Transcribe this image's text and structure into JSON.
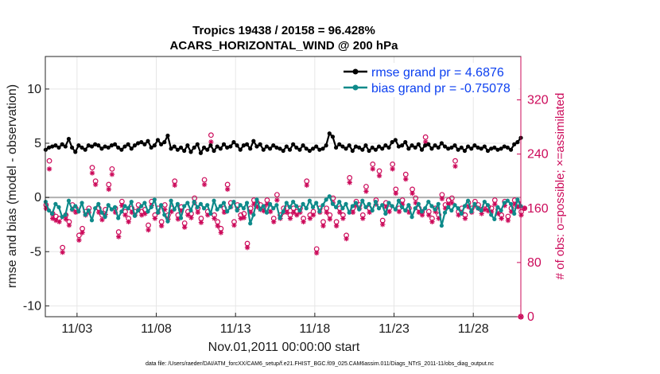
{
  "chart_data": {
    "type": "line",
    "title_line1": "Tropics 19438 / 20158 = 96.428%",
    "title_line2": "ACARS_HORIZONTAL_WIND @ 200 hPa",
    "xlabel": "Nov.01,2011 00:00:00 start",
    "ylabel_left": "rmse and bias (model - observation)",
    "ylabel_right": "# of obs: o=possible; ×=assimilated",
    "x_tick_labels": [
      "11/03",
      "11/08",
      "11/13",
      "11/18",
      "11/23",
      "11/28"
    ],
    "x_tick_days": [
      3,
      8,
      13,
      18,
      23,
      28
    ],
    "xlim_days": [
      1,
      31
    ],
    "left_ylim": [
      -11,
      13
    ],
    "left_ticks": [
      "-10",
      "-5",
      "0",
      "5",
      "10"
    ],
    "left_tick_values": [
      -10,
      -5,
      0,
      5,
      10
    ],
    "right_ylim": [
      0,
      384
    ],
    "right_ticks": [
      "0",
      "80",
      "160",
      "240",
      "320"
    ],
    "right_tick_values": [
      0,
      80,
      160,
      240,
      320
    ],
    "legend": [
      {
        "name": "rmse grand pr = 4.6876",
        "color": "#000000"
      },
      {
        "name": "bias grand pr = -0.75078",
        "color": "#0e8a8a"
      }
    ],
    "series": [
      {
        "name": "rmse",
        "color": "#000000",
        "values": [
          4.4,
          4.6,
          4.7,
          4.8,
          4.6,
          4.9,
          4.7,
          5.4,
          4.6,
          4.2,
          4.8,
          4.6,
          4.4,
          4.8,
          4.7,
          4.9,
          4.8,
          4.5,
          4.7,
          4.6,
          4.8,
          4.9,
          4.6,
          4.4,
          4.7,
          4.9,
          4.5,
          4.8,
          5.0,
          5.1,
          4.9,
          5.2,
          4.6,
          4.8,
          5.3,
          4.9,
          5.1,
          5.7,
          4.5,
          4.7,
          4.4,
          4.6,
          4.3,
          4.8,
          4.2,
          4.6,
          4.9,
          4.1,
          4.6,
          4.4,
          4.8,
          4.3,
          4.7,
          4.5,
          4.9,
          4.6,
          4.7,
          5.1,
          4.8,
          4.4,
          4.8,
          4.9,
          4.5,
          5.2,
          4.7,
          4.9,
          4.4,
          4.7,
          4.5,
          4.8,
          4.6,
          4.5,
          4.3,
          4.7,
          4.4,
          4.9,
          4.6,
          4.4,
          4.8,
          4.5,
          4.3,
          4.5,
          4.7,
          4.4,
          4.5,
          4.8,
          5.9,
          5.6,
          4.6,
          4.9,
          4.7,
          4.5,
          4.8,
          4.3,
          4.7,
          4.6,
          4.4,
          4.8,
          4.3,
          4.6,
          4.4,
          4.7,
          4.5,
          4.8,
          4.6,
          5.1,
          5.3,
          4.7,
          4.8,
          5.1,
          4.5,
          4.8,
          4.6,
          4.9,
          4.4,
          4.8,
          4.9,
          4.5,
          4.8,
          4.6,
          5.0,
          4.7,
          4.5,
          4.6,
          4.8,
          4.4,
          4.6,
          4.3,
          4.7,
          4.5,
          4.8,
          4.6,
          4.5,
          4.7,
          4.3,
          4.5,
          4.6,
          4.4,
          4.5,
          4.7,
          4.6,
          4.4,
          4.9,
          5.1,
          5.5
        ]
      },
      {
        "name": "bias",
        "color": "#0e8a8a",
        "values": [
          -0.4,
          -1.2,
          -1.5,
          -0.6,
          -0.9,
          -1.8,
          -1.6,
          -0.3,
          -1.1,
          -0.8,
          -1.3,
          -0.5,
          -1.6,
          -1.2,
          -2.1,
          -1.0,
          -0.6,
          -1.4,
          -1.8,
          -0.7,
          -1.1,
          -0.9,
          -1.9,
          -1.3,
          -0.8,
          -1.0,
          -0.4,
          -1.7,
          -1.2,
          -0.8,
          -0.5,
          -1.3,
          -0.9,
          -0.2,
          -1.4,
          -0.7,
          -1.6,
          -2.2,
          -0.3,
          -1.1,
          -0.6,
          -1.9,
          -0.8,
          -0.5,
          -1.2,
          -0.4,
          -0.9,
          -0.6,
          -1.0,
          -0.7,
          -1.5,
          -0.3,
          -1.1,
          -0.8,
          -0.5,
          -1.3,
          -0.9,
          -0.4,
          -1.2,
          -0.7,
          -1.0,
          -0.5,
          -2.4,
          -1.6,
          -0.2,
          -1.1,
          -0.8,
          -1.4,
          -0.6,
          -1.0,
          -0.7,
          -1.9,
          -1.3,
          -0.5,
          -0.9,
          -0.4,
          -0.8,
          -1.2,
          -0.6,
          -1.0,
          -0.3,
          -0.9,
          -0.5,
          -1.3,
          -0.7,
          -0.2,
          0.1,
          -0.6,
          -0.9,
          -0.4,
          -1.0,
          -0.6,
          -1.4,
          -0.8,
          -0.5,
          -1.1,
          -0.3,
          -0.9,
          -0.6,
          -1.2,
          -0.4,
          -1.0,
          -0.7,
          -1.5,
          -0.5,
          -0.8,
          -1.1,
          -0.3,
          -0.9,
          -1.2,
          -0.7,
          -1.8,
          -1.0,
          -0.6,
          -1.3,
          -1.0,
          -0.4,
          -0.8,
          -1.1,
          -0.6,
          -2.6,
          -1.4,
          -0.9,
          -1.2,
          -0.7,
          -1.0,
          -1.5,
          -0.8,
          -0.3,
          -1.3,
          -0.6,
          -1.0,
          -1.2,
          -0.4,
          -0.7,
          -1.6,
          -2.0,
          -0.9,
          -1.2,
          -0.5,
          -0.3,
          -0.6,
          -1.5,
          -0.2,
          -0.8
        ]
      },
      {
        "name": "obs possible",
        "color": "#cc0a5a",
        "values": [
          165,
          230,
          152,
          148,
          145,
          102,
          150,
          140,
          165,
          160,
          120,
          130,
          155,
          160,
          220,
          200,
          160,
          150,
          158,
          195,
          218,
          160,
          125,
          170,
          155,
          145,
          160,
          155,
          165,
          155,
          158,
          135,
          170,
          150,
          160,
          140,
          165,
          150,
          160,
          200,
          150,
          162,
          138,
          155,
          152,
          175,
          160,
          145,
          202,
          155,
          268,
          150,
          140,
          130,
          160,
          195,
          168,
          140,
          165,
          150,
          152,
          108,
          160,
          172,
          168,
          165,
          162,
          172,
          160,
          145,
          180,
          150,
          160,
          160,
          150,
          160,
          155,
          160,
          145,
          200,
          150,
          155,
          100,
          160,
          140,
          160,
          150,
          175,
          140,
          160,
          150,
          120,
          205,
          160,
          170,
          165,
          150,
          192,
          160,
          225,
          172,
          215,
          142,
          168,
          160,
          225,
          188,
          160,
          172,
          210,
          160,
          188,
          175,
          160,
          155,
          265,
          155,
          145,
          160,
          150,
          180,
          165,
          172,
          175,
          230,
          155,
          160,
          150,
          168,
          160,
          170,
          165,
          158,
          165,
          162,
          160,
          172,
          158,
          150,
          170,
          148,
          160,
          172,
          168,
          155,
          160
        ]
      },
      {
        "name": "obs assimilated",
        "color": "#cc0a5a",
        "values": [
          160,
          218,
          145,
          142,
          140,
          95,
          144,
          135,
          158,
          154,
          113,
          124,
          150,
          154,
          212,
          195,
          154,
          143,
          151,
          188,
          210,
          154,
          118,
          164,
          150,
          140,
          154,
          150,
          158,
          150,
          152,
          128,
          164,
          145,
          154,
          134,
          158,
          144,
          155,
          194,
          144,
          156,
          132,
          150,
          146,
          168,
          154,
          139,
          195,
          150,
          258,
          145,
          134,
          124,
          154,
          188,
          162,
          135,
          158,
          145,
          146,
          102,
          154,
          166,
          162,
          158,
          156,
          166,
          155,
          140,
          172,
          145,
          154,
          154,
          145,
          154,
          150,
          154,
          140,
          194,
          145,
          150,
          94,
          154,
          134,
          154,
          144,
          168,
          134,
          154,
          145,
          115,
          198,
          154,
          164,
          160,
          145,
          185,
          154,
          218,
          166,
          208,
          136,
          162,
          155,
          218,
          182,
          155,
          166,
          203,
          154,
          182,
          168,
          154,
          150,
          258,
          150,
          140,
          155,
          145,
          174,
          160,
          166,
          168,
          222,
          150,
          154,
          145,
          162,
          154,
          164,
          160,
          152,
          158,
          156,
          155,
          166,
          152,
          145,
          164,
          142,
          155,
          166,
          162,
          150,
          160
        ]
      }
    ],
    "extra_point_obs": {
      "day": 31,
      "value": 0
    }
  },
  "footer": {
    "data_file": "data file: /Users/raeder/DAI/ATM_forcXX/CAM6_setup/f.e21.FHIST_BGC.f09_025.CAM6assim.011/Diags_NTrS_2011-11/obs_diag_output.nc"
  },
  "colors": {
    "rmse": "#000000",
    "bias": "#0e8a8a",
    "obs": "#cc0a5a",
    "legend_text": "#0b3ff0",
    "zero_line": "#b0b0b0"
  }
}
